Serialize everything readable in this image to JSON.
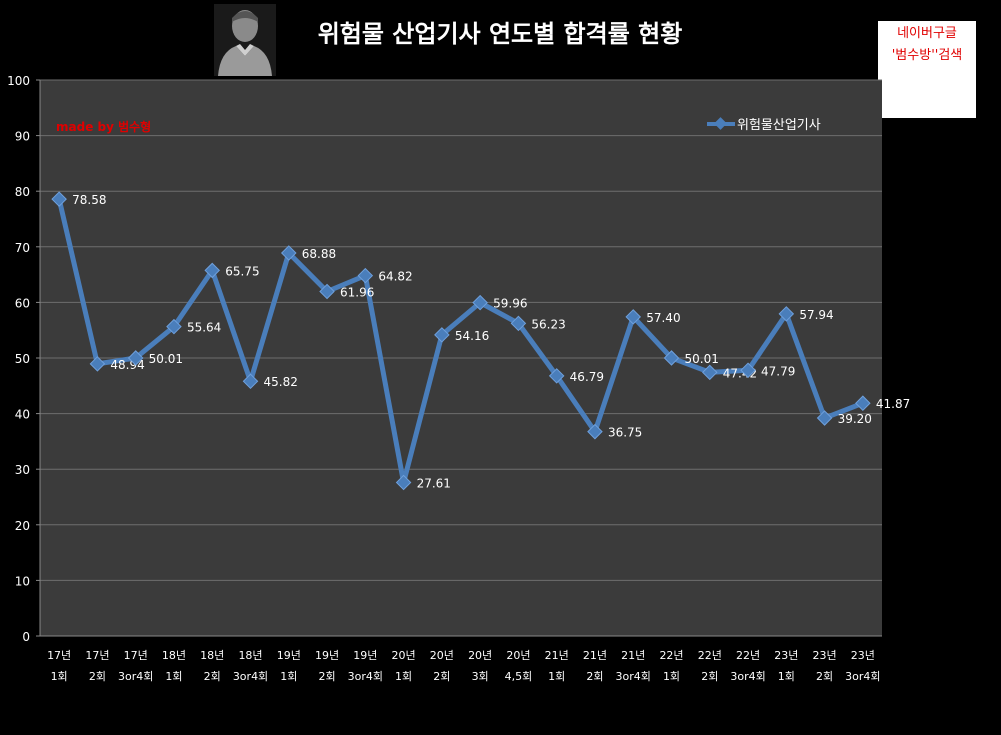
{
  "page": {
    "title": "위험물 산업기사 연도별 합격률 현황",
    "ad_line1": "네이버구글",
    "ad_line2": "'범수방''검색",
    "watermark": "made by  범수형",
    "colors": {
      "background": "#000000",
      "plot_area": "#3b3b3b",
      "line": "#4a7ebb",
      "grid": "#6e6e6e",
      "watermark": "#e00000"
    }
  },
  "chart_data": {
    "type": "line",
    "title": "위험물 산업기사 연도별 합격률 현황",
    "categories": [
      [
        "17년",
        "1회"
      ],
      [
        "17년",
        "2회"
      ],
      [
        "17년",
        "3or4회"
      ],
      [
        "18년",
        "1회"
      ],
      [
        "18년",
        "2회"
      ],
      [
        "18년",
        "3or4회"
      ],
      [
        "19년",
        "1회"
      ],
      [
        "19년",
        "2회"
      ],
      [
        "19년",
        "3or4회"
      ],
      [
        "20년",
        "1회"
      ],
      [
        "20년",
        "2회"
      ],
      [
        "20년",
        "3회"
      ],
      [
        "20년",
        "4,5회"
      ],
      [
        "21년",
        "1회"
      ],
      [
        "21년",
        "2회"
      ],
      [
        "21년",
        "3or4회"
      ],
      [
        "22년",
        "1회"
      ],
      [
        "22년",
        "2회"
      ],
      [
        "22년",
        "3or4회"
      ],
      [
        "23년",
        "1회"
      ],
      [
        "23년",
        "2회"
      ],
      [
        "23년",
        "3or4회"
      ]
    ],
    "series": [
      {
        "name": "위험물산업기사",
        "values": [
          78.58,
          48.94,
          50.01,
          55.64,
          65.75,
          45.82,
          68.88,
          61.96,
          64.82,
          27.61,
          54.16,
          59.96,
          56.23,
          46.79,
          36.75,
          57.4,
          50.01,
          47.42,
          47.79,
          57.94,
          39.2,
          41.87
        ],
        "labels": [
          "78.58",
          "48.94",
          "50.01",
          "55.64",
          "65.75",
          "45.82",
          "68.88",
          "61.96",
          "64.82",
          "27.61",
          "54.16",
          "59.96",
          "56.23",
          "46.79",
          "36.75",
          "57.40",
          "50.01",
          "47.42",
          "47.79",
          "57.94",
          "39.20",
          "41.87"
        ]
      }
    ],
    "ylim": [
      0,
      100
    ],
    "yticks": [
      "0",
      "10",
      "20",
      "30",
      "40",
      "50",
      "60",
      "70",
      "80",
      "90",
      "100"
    ],
    "grid": true,
    "legend": "top-right"
  }
}
